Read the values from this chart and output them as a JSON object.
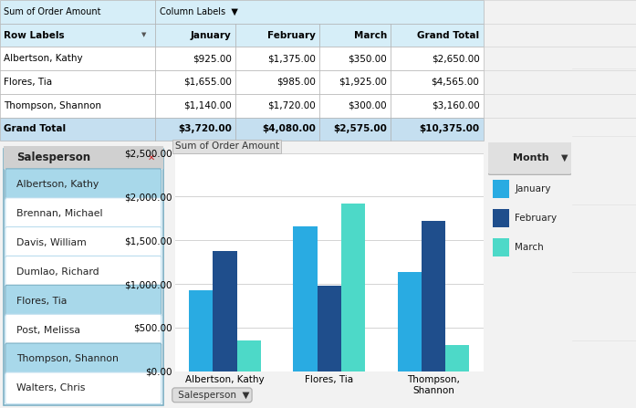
{
  "title": "Sum of Order Amount",
  "categories": [
    "Albertson, Kathy",
    "Flores, Tia",
    "Thompson,\nShannon"
  ],
  "months": [
    "January",
    "February",
    "March"
  ],
  "values": {
    "Albertson, Kathy": [
      925,
      1375,
      350
    ],
    "Flores, Tia": [
      1655,
      985,
      1925
    ],
    "Thompson, Shannon": [
      1140,
      1720,
      300
    ]
  },
  "bar_colors": [
    "#29ABE2",
    "#1F4E8C",
    "#4DD9C8"
  ],
  "ylim": [
    0,
    2500
  ],
  "yticks": [
    0,
    500,
    1000,
    1500,
    2000,
    2500
  ],
  "ytick_labels": [
    "$0.00",
    "$500.00",
    "$1,000.00",
    "$1,500.00",
    "$2,000.00",
    "$2,500.00"
  ],
  "light_blue_bg": "#D6EEF8",
  "grand_total_bg": "#C5DFF0",
  "white": "#FFFFFF",
  "pivot_table": {
    "col_headers": [
      "Row Labels",
      "January",
      "February",
      "March",
      "Grand Total"
    ],
    "rows": [
      [
        "Albertson, Kathy",
        "$925.00",
        "$1,375.00",
        "$350.00",
        "$2,650.00"
      ],
      [
        "Flores, Tia",
        "$1,655.00",
        "$985.00",
        "$1,925.00",
        "$4,565.00"
      ],
      [
        "Thompson, Shannon",
        "$1,140.00",
        "$1,720.00",
        "$300.00",
        "$3,160.00"
      ],
      [
        "Grand Total",
        "$3,720.00",
        "$4,080.00",
        "$2,575.00",
        "$10,375.00"
      ]
    ]
  },
  "slicer_title": "Salesperson",
  "slicer_items": [
    "Albertson, Kathy",
    "Brennan, Michael",
    "Davis, William",
    "Dumlao, Richard",
    "Flores, Tia",
    "Post, Melissa",
    "Thompson, Shannon",
    "Walters, Chris"
  ],
  "slicer_selected": [
    "Albertson, Kathy",
    "Flores, Tia",
    "Thompson, Shannon"
  ],
  "legend_title": "Month",
  "fig_bg": "#F2F2F2",
  "chart_bg": "#FFFFFF",
  "grid_color": "#CCCCCC",
  "slicer_selected_bg": "#A8D8EA",
  "slicer_unselected_bg": "#FFFFFF",
  "slicer_header_bg": "#D0D0D0",
  "slicer_border_color": "#7BAFC4"
}
